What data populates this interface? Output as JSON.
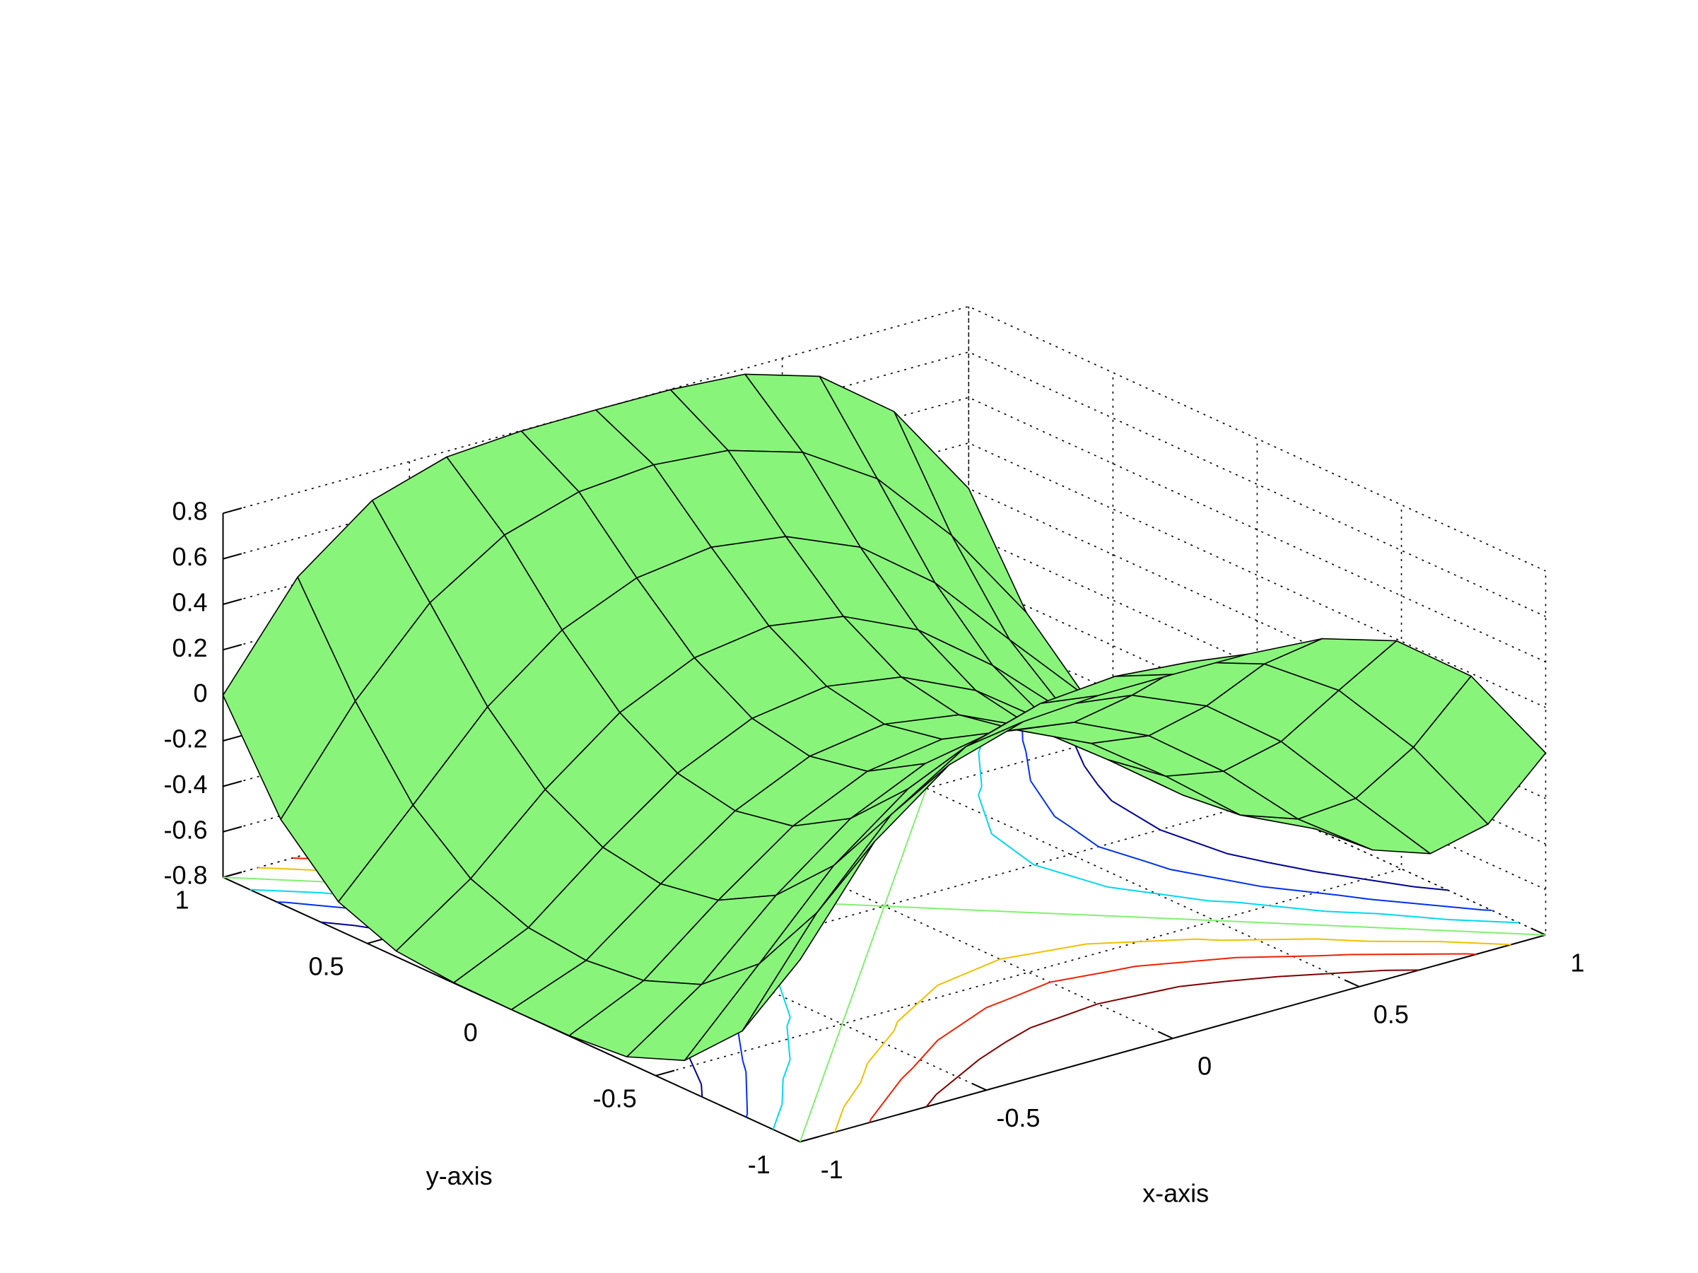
{
  "chart_data": {
    "type": "surface",
    "x": [
      -1,
      -0.8,
      -0.6,
      -0.4,
      -0.2,
      0,
      0.2,
      0.4,
      0.6,
      0.8,
      1
    ],
    "y": [
      -1,
      -0.8,
      -0.6,
      -0.4,
      -0.2,
      0,
      0.2,
      0.4,
      0.6,
      0.8,
      1
    ],
    "z": [
      [
        0,
        0.429,
        0.675,
        0.775,
        0.798,
        0.8,
        0.798,
        0.775,
        0.675,
        0.429,
        0
      ],
      [
        -0.429,
        0,
        0.341,
        0.548,
        0.647,
        0.675,
        0.647,
        0.548,
        0.341,
        0,
        -0.429
      ],
      [
        -0.675,
        -0.341,
        0,
        0.247,
        0.385,
        0.429,
        0.385,
        0.247,
        0,
        -0.341,
        -0.675
      ],
      [
        -0.775,
        -0.548,
        -0.247,
        0,
        0.15,
        0.199,
        0.15,
        0,
        -0.247,
        -0.548,
        -0.775
      ],
      [
        -0.798,
        -0.647,
        -0.385,
        -0.15,
        0,
        0.05,
        0,
        -0.15,
        -0.385,
        -0.647,
        -0.798
      ],
      [
        -0.8,
        -0.675,
        -0.429,
        -0.199,
        -0.05,
        0,
        -0.05,
        -0.199,
        -0.429,
        -0.675,
        -0.8
      ],
      [
        -0.798,
        -0.647,
        -0.385,
        -0.15,
        0,
        0.05,
        0,
        -0.15,
        -0.385,
        -0.647,
        -0.798
      ],
      [
        -0.775,
        -0.548,
        -0.247,
        0,
        0.15,
        0.199,
        0.15,
        0,
        -0.247,
        -0.548,
        -0.775
      ],
      [
        -0.675,
        -0.341,
        0,
        0.247,
        0.385,
        0.429,
        0.385,
        0.247,
        0,
        -0.341,
        -0.675
      ],
      [
        -0.429,
        0,
        0.341,
        0.548,
        0.647,
        0.675,
        0.647,
        0.548,
        0.341,
        0,
        -0.429
      ],
      [
        0,
        0.429,
        0.675,
        0.775,
        0.798,
        0.8,
        0.798,
        0.775,
        0.675,
        0.429,
        0
      ]
    ],
    "xlim": [
      -1,
      1
    ],
    "ylim": [
      -1,
      1
    ],
    "zlim": [
      -0.8,
      0.8
    ],
    "xticks": [
      -1,
      -0.5,
      0,
      0.5,
      1
    ],
    "yticks": [
      -1,
      -0.5,
      0,
      0.5,
      1
    ],
    "zticks": [
      -0.8,
      -0.6,
      -0.4,
      -0.2,
      0,
      0.2,
      0.4,
      0.6,
      0.8
    ],
    "xlabel": "x-axis",
    "ylabel": "y-axis",
    "color": "#88f57a",
    "edge_color": "#000000",
    "grid": true,
    "contour_levels": [
      -0.6,
      -0.4,
      -0.2,
      0,
      0.2,
      0.4,
      0.6
    ],
    "contour_colors": [
      "#000090",
      "#0030f0",
      "#00d8f0",
      "#80f070",
      "#f0c000",
      "#f02000",
      "#800000"
    ]
  }
}
